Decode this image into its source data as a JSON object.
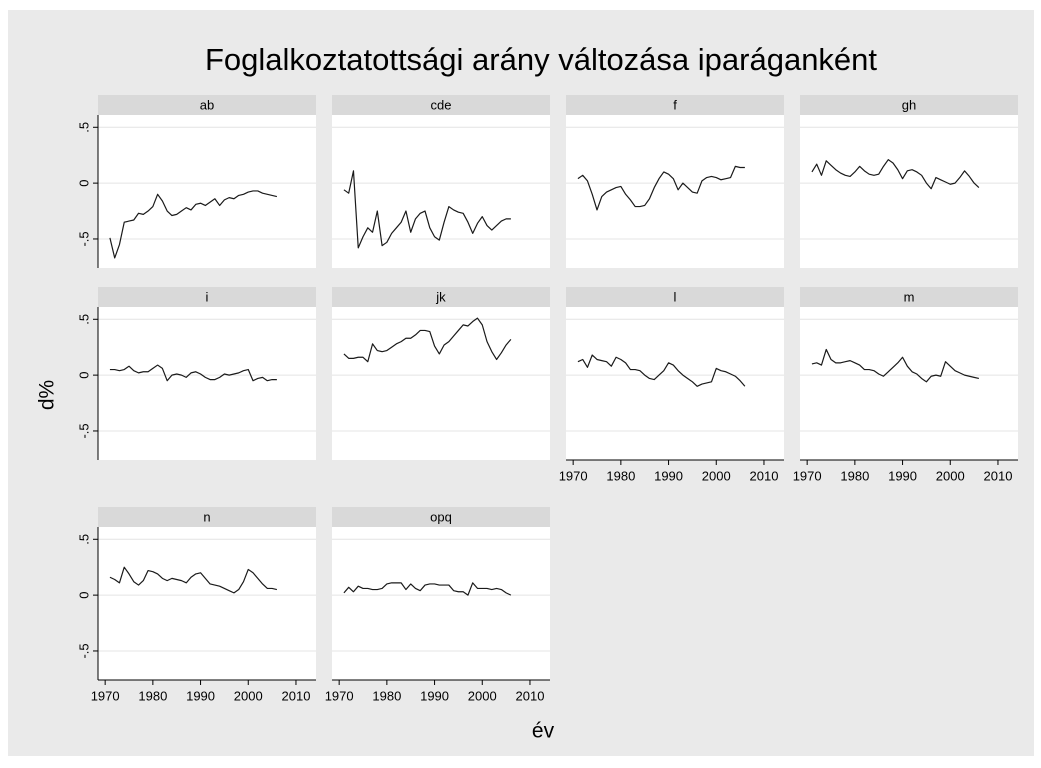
{
  "chart_data": {
    "type": "line",
    "title": "Foglalkoztatottsági arány változása iparáganként",
    "xlabel": "év",
    "ylabel": "d%",
    "x": [
      1971,
      1972,
      1973,
      1974,
      1975,
      1976,
      1977,
      1978,
      1979,
      1980,
      1981,
      1982,
      1983,
      1984,
      1985,
      1986,
      1987,
      1988,
      1989,
      1990,
      1991,
      1992,
      1993,
      1994,
      1995,
      1996,
      1997,
      1998,
      1999,
      2000,
      2001,
      2002,
      2003,
      2004,
      2005,
      2006
    ],
    "xlim": [
      1968.5,
      2014.2
    ],
    "xticks": [
      1970,
      1980,
      1990,
      2000,
      2010
    ],
    "ylim": [
      -0.76,
      0.61
    ],
    "yticks": [
      {
        "value": 0.5,
        "label": ".5"
      },
      0,
      {
        "value": -0.5,
        "label": "-.5"
      }
    ],
    "grid": true,
    "color": "#1a1a1a",
    "series": [
      {
        "name": "ab",
        "values": [
          -0.49,
          -0.67,
          -0.55,
          -0.35,
          -0.34,
          -0.33,
          -0.27,
          -0.28,
          -0.25,
          -0.21,
          -0.1,
          -0.16,
          -0.25,
          -0.29,
          -0.28,
          -0.25,
          -0.22,
          -0.24,
          -0.19,
          -0.18,
          -0.2,
          -0.17,
          -0.14,
          -0.2,
          -0.15,
          -0.13,
          -0.14,
          -0.11,
          -0.1,
          -0.08,
          -0.07,
          -0.07,
          -0.09,
          -0.1,
          -0.11,
          -0.12
        ]
      },
      {
        "name": "cde",
        "values": [
          -0.06,
          -0.09,
          0.11,
          -0.58,
          -0.48,
          -0.4,
          -0.44,
          -0.25,
          -0.56,
          -0.53,
          -0.45,
          -0.4,
          -0.35,
          -0.25,
          -0.44,
          -0.32,
          -0.27,
          -0.25,
          -0.4,
          -0.48,
          -0.51,
          -0.35,
          -0.21,
          -0.24,
          -0.26,
          -0.27,
          -0.35,
          -0.45,
          -0.36,
          -0.3,
          -0.38,
          -0.42,
          -0.38,
          -0.34,
          -0.32,
          -0.32
        ]
      },
      {
        "name": "f",
        "values": [
          0.04,
          0.07,
          0.02,
          -0.1,
          -0.24,
          -0.12,
          -0.08,
          -0.06,
          -0.04,
          -0.03,
          -0.1,
          -0.15,
          -0.21,
          -0.21,
          -0.2,
          -0.14,
          -0.04,
          0.04,
          0.1,
          0.08,
          0.04,
          -0.06,
          0.0,
          -0.04,
          -0.08,
          -0.09,
          0.02,
          0.05,
          0.06,
          0.05,
          0.03,
          0.04,
          0.05,
          0.15,
          0.14,
          0.14
        ]
      },
      {
        "name": "gh",
        "values": [
          0.1,
          0.17,
          0.07,
          0.2,
          0.16,
          0.12,
          0.09,
          0.07,
          0.06,
          0.1,
          0.15,
          0.11,
          0.08,
          0.07,
          0.08,
          0.15,
          0.21,
          0.18,
          0.12,
          0.04,
          0.11,
          0.12,
          0.1,
          0.07,
          0.0,
          -0.05,
          0.05,
          0.03,
          0.01,
          -0.01,
          0.0,
          0.05,
          0.11,
          0.06,
          0.0,
          -0.04
        ]
      },
      {
        "name": "i",
        "values": [
          0.05,
          0.05,
          0.04,
          0.05,
          0.08,
          0.04,
          0.02,
          0.03,
          0.03,
          0.06,
          0.09,
          0.06,
          -0.05,
          0.0,
          0.01,
          0.0,
          -0.02,
          0.02,
          0.03,
          0.01,
          -0.02,
          -0.04,
          -0.04,
          -0.02,
          0.01,
          0.0,
          0.01,
          0.02,
          0.04,
          0.05,
          -0.05,
          -0.03,
          -0.02,
          -0.05,
          -0.04,
          -0.04
        ]
      },
      {
        "name": "jk",
        "values": [
          0.19,
          0.15,
          0.15,
          0.16,
          0.16,
          0.12,
          0.28,
          0.22,
          0.21,
          0.22,
          0.25,
          0.28,
          0.3,
          0.33,
          0.33,
          0.36,
          0.4,
          0.4,
          0.39,
          0.26,
          0.19,
          0.27,
          0.3,
          0.35,
          0.4,
          0.45,
          0.44,
          0.48,
          0.51,
          0.45,
          0.3,
          0.21,
          0.14,
          0.2,
          0.27,
          0.32
        ]
      },
      {
        "name": "l",
        "values": [
          0.12,
          0.14,
          0.07,
          0.18,
          0.14,
          0.13,
          0.12,
          0.08,
          0.16,
          0.14,
          0.11,
          0.05,
          0.05,
          0.04,
          0.0,
          -0.03,
          -0.04,
          0.0,
          0.04,
          0.11,
          0.09,
          0.04,
          0.0,
          -0.03,
          -0.06,
          -0.1,
          -0.08,
          -0.07,
          -0.06,
          0.06,
          0.04,
          0.03,
          0.01,
          -0.01,
          -0.05,
          -0.1
        ]
      },
      {
        "name": "m",
        "values": [
          0.1,
          0.11,
          0.09,
          0.23,
          0.14,
          0.11,
          0.11,
          0.12,
          0.13,
          0.11,
          0.09,
          0.05,
          0.05,
          0.04,
          0.01,
          -0.01,
          0.03,
          0.07,
          0.11,
          0.16,
          0.08,
          0.03,
          0.01,
          -0.03,
          -0.06,
          -0.01,
          0.0,
          -0.01,
          0.12,
          0.08,
          0.04,
          0.02,
          0.0,
          -0.01,
          -0.02,
          -0.03
        ]
      },
      {
        "name": "n",
        "values": [
          0.16,
          0.14,
          0.11,
          0.25,
          0.19,
          0.12,
          0.09,
          0.13,
          0.22,
          0.21,
          0.19,
          0.15,
          0.13,
          0.15,
          0.14,
          0.13,
          0.11,
          0.16,
          0.19,
          0.2,
          0.15,
          0.1,
          0.09,
          0.08,
          0.06,
          0.04,
          0.02,
          0.05,
          0.12,
          0.23,
          0.2,
          0.15,
          0.1,
          0.06,
          0.06,
          0.05
        ]
      },
      {
        "name": "opq",
        "values": [
          0.02,
          0.07,
          0.03,
          0.08,
          0.06,
          0.06,
          0.05,
          0.05,
          0.06,
          0.1,
          0.11,
          0.11,
          0.11,
          0.05,
          0.1,
          0.06,
          0.04,
          0.09,
          0.1,
          0.1,
          0.09,
          0.09,
          0.09,
          0.04,
          0.03,
          0.03,
          0.0,
          0.11,
          0.06,
          0.06,
          0.06,
          0.05,
          0.06,
          0.05,
          0.02,
          0.0
        ]
      }
    ]
  }
}
